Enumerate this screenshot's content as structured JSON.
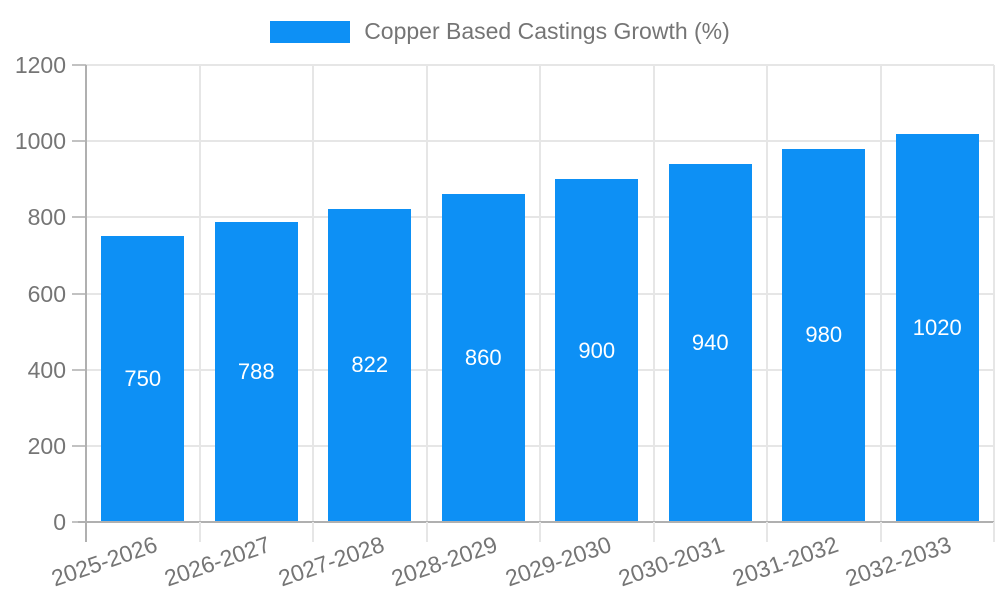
{
  "colors": {
    "bar": "#0d90f5",
    "axis_line": "#b0b0b0",
    "gridline": "#e6e6e6",
    "tick": "#c2c2c2",
    "axis_text": "#757575",
    "value_text": "#ffffff",
    "background": "#ffffff"
  },
  "legend": {
    "label": "Copper Based Castings Growth (%)"
  },
  "chart_data": {
    "type": "bar",
    "title": "",
    "categories": [
      "2025-2026",
      "2026-2027",
      "2027-2028",
      "2028-2029",
      "2029-2030",
      "2030-2031",
      "2031-2032",
      "2032-2033"
    ],
    "series": [
      {
        "name": "Copper Based Castings Growth (%)",
        "color": "#0d90f5",
        "values": [
          750,
          788,
          822,
          860,
          900,
          940,
          980,
          1020
        ]
      }
    ],
    "xlabel": "",
    "ylabel": "",
    "ylim": [
      0,
      1200
    ],
    "yticks": [
      0,
      200,
      400,
      600,
      800,
      1000,
      1200
    ],
    "grid": true,
    "legend_position": "top",
    "value_labels_inside_bars": true,
    "x_label_rotation_deg": -19
  }
}
